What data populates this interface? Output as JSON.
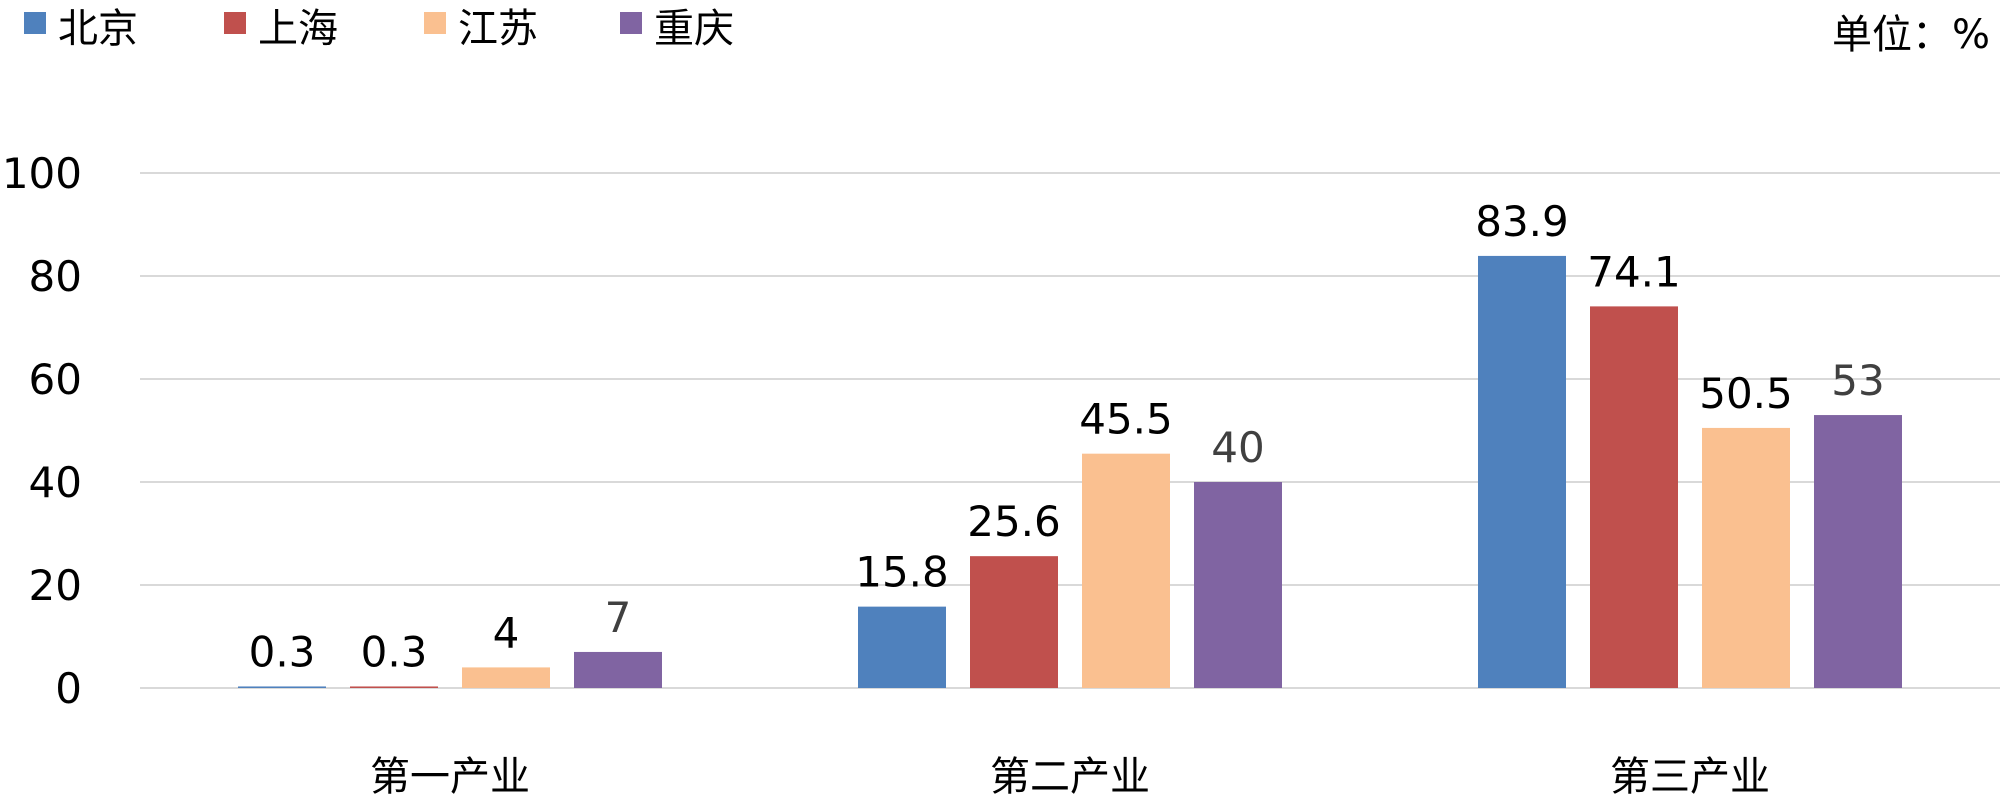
{
  "chart_data": {
    "type": "bar",
    "unit_label": "单位：%",
    "categories": [
      "第一产业",
      "第二产业",
      "第三产业"
    ],
    "series": [
      {
        "name": "北京",
        "color": "#4f81bd",
        "label_color": "#000000",
        "values": [
          0.3,
          15.8,
          83.9
        ]
      },
      {
        "name": "上海",
        "color": "#c0504d",
        "label_color": "#000000",
        "values": [
          0.3,
          25.6,
          74.1
        ]
      },
      {
        "name": "江苏",
        "color": "#fac090",
        "label_color": "#000000",
        "values": [
          4,
          45.5,
          50.5
        ]
      },
      {
        "name": "重庆",
        "color": "#8064a2",
        "label_color": "#404040",
        "values": [
          7,
          40,
          53
        ]
      }
    ],
    "ylim": [
      0,
      100
    ],
    "yticks": [
      0,
      20,
      40,
      60,
      80,
      100
    ],
    "grid": true,
    "legend_position": "top-left",
    "xlabel": "",
    "ylabel": ""
  }
}
